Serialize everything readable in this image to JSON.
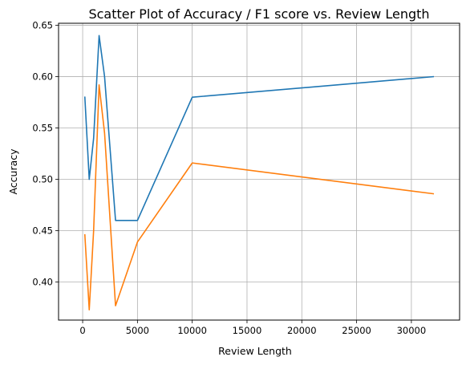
{
  "chart_data": {
    "type": "line",
    "title": "Scatter Plot of Accuracy / F1 score vs. Review Length",
    "xlabel": "Review Length",
    "ylabel": "Accuracy",
    "xlim": [
      -2200,
      34400
    ],
    "ylim": [
      0.363,
      0.652
    ],
    "xticks": [
      0,
      5000,
      10000,
      15000,
      20000,
      25000,
      30000
    ],
    "yticks": [
      0.4,
      0.45,
      0.5,
      0.55,
      0.6,
      0.65
    ],
    "xtick_labels": [
      "0",
      "5000",
      "10000",
      "15000",
      "20000",
      "25000",
      "30000"
    ],
    "ytick_labels": [
      "0.40",
      "0.45",
      "0.50",
      "0.55",
      "0.60",
      "0.65"
    ],
    "grid": true,
    "series": [
      {
        "color": "#1f77b4",
        "x": [
          200,
          600,
          1000,
          1500,
          2000,
          3000,
          5000,
          10000,
          32000
        ],
        "y": [
          0.58,
          0.5,
          0.54,
          0.64,
          0.6,
          0.46,
          0.46,
          0.58,
          0.6
        ]
      },
      {
        "color": "#ff7f0e",
        "x": [
          200,
          600,
          1000,
          1500,
          2000,
          3000,
          5000,
          10000,
          32000
        ],
        "y": [
          0.446,
          0.373,
          0.45,
          0.592,
          0.545,
          0.377,
          0.439,
          0.516,
          0.486
        ]
      }
    ]
  }
}
